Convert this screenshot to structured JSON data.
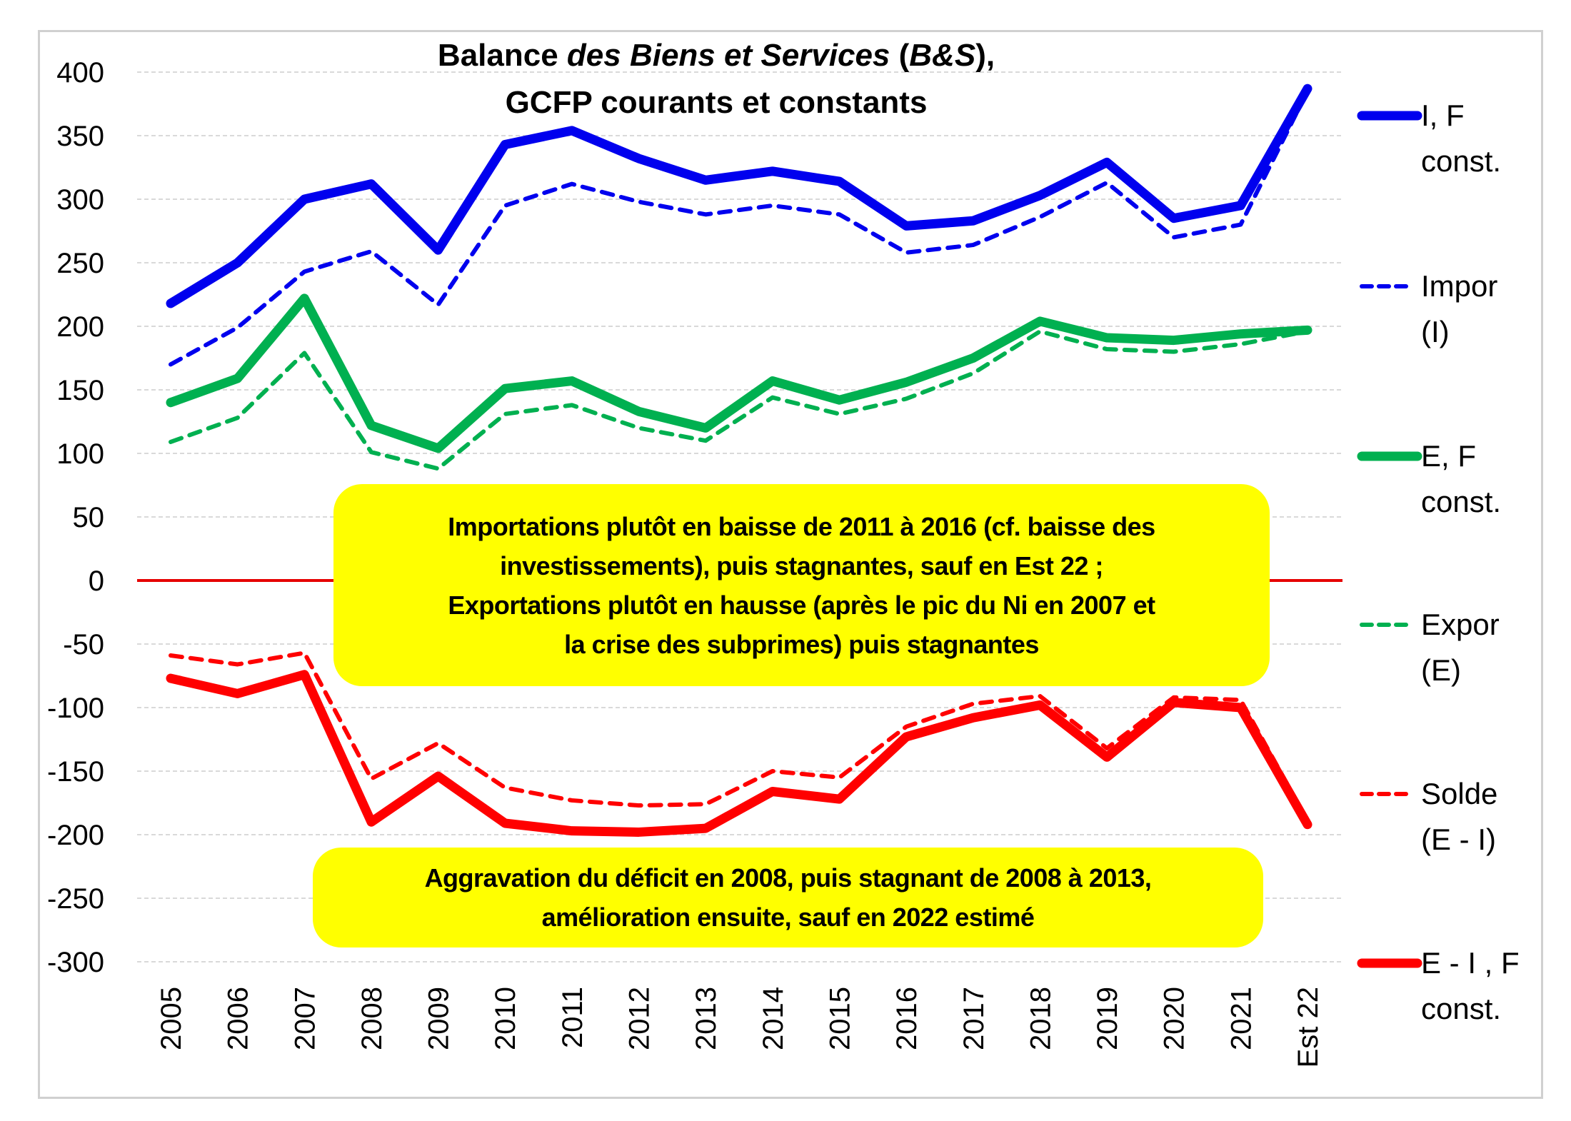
{
  "chart_data": {
    "type": "line",
    "title": [
      "Balance des Biens et Services (B&S),",
      "GCFP courants et constants"
    ],
    "title_parts": {
      "line1": [
        {
          "text": "Balance ",
          "italic": false
        },
        {
          "text": "des Biens et Services",
          "italic": true
        },
        {
          "text": " (",
          "italic": false
        },
        {
          "text": "B&S",
          "italic": true
        },
        {
          "text": "),",
          "italic": false
        }
      ],
      "line2": "GCFP courants et constants"
    },
    "xlabel": "",
    "ylabel": "",
    "categories": [
      "2005",
      "2006",
      "2007",
      "2008",
      "2009",
      "2010",
      "2011",
      "2012",
      "2013",
      "2014",
      "2015",
      "2016",
      "2017",
      "2018",
      "2019",
      "2020",
      "2021",
      "Est 22"
    ],
    "ylim": [
      -300,
      400
    ],
    "yticks": [
      400,
      350,
      300,
      250,
      200,
      150,
      100,
      50,
      0,
      -50,
      -100,
      -150,
      -200,
      -250,
      -300
    ],
    "grid": true,
    "zero_line_color": "#e60000",
    "legend_position": "right",
    "series": [
      {
        "name": "I, F const.",
        "label_lines": [
          "I, F",
          "const."
        ],
        "color": "#0000ee",
        "style": "solid",
        "values": [
          218,
          250,
          300,
          312,
          260,
          343,
          354,
          332,
          315,
          322,
          314,
          279,
          283,
          303,
          329,
          285,
          295,
          387
        ]
      },
      {
        "name": "Impor (I)",
        "label_lines": [
          "Impor",
          "(I)"
        ],
        "color": "#0000ee",
        "style": "dashed",
        "values": [
          170,
          199,
          243,
          259,
          217,
          295,
          312,
          298,
          288,
          295,
          288,
          258,
          264,
          286,
          313,
          270,
          280,
          385
        ]
      },
      {
        "name": "E, F const.",
        "label_lines": [
          "E, F",
          "const."
        ],
        "color": "#00b050",
        "style": "solid",
        "values": [
          140,
          159,
          222,
          122,
          104,
          151,
          157,
          133,
          120,
          157,
          142,
          156,
          175,
          204,
          191,
          189,
          194,
          197
        ]
      },
      {
        "name": "Expor (E)",
        "label_lines": [
          "Expor",
          "(E)"
        ],
        "color": "#00b050",
        "style": "dashed",
        "values": [
          109,
          128,
          179,
          101,
          88,
          131,
          138,
          120,
          110,
          144,
          131,
          143,
          163,
          196,
          182,
          180,
          186,
          196
        ]
      },
      {
        "name": "Solde (E - I)",
        "label_lines": [
          "Solde",
          "(E - I)"
        ],
        "color": "#ff0000",
        "style": "dashed",
        "values": [
          -59,
          -66,
          -57,
          -156,
          -128,
          -163,
          -173,
          -177,
          -176,
          -150,
          -155,
          -115,
          -97,
          -91,
          -132,
          -92,
          -94,
          -189
        ]
      },
      {
        "name": "E - I , F const.",
        "label_lines": [
          "E - I , F",
          "const."
        ],
        "color": "#ff0000",
        "style": "solid",
        "values": [
          -77,
          -89,
          -74,
          -190,
          -154,
          -191,
          -197,
          -198,
          -195,
          -166,
          -172,
          -123,
          -108,
          -98,
          -139,
          -96,
          -100,
          -192
        ]
      }
    ],
    "annotations": [
      {
        "lines": [
          "Importations plutôt  en baisse de  2011 à 2016 (cf. baisse des",
          "investissements), puis  stagnantes, sauf en Est  22 ;",
          "Exportations  plutôt en hausse   (après le pic du Ni en  2007 et",
          "la crise des subprimes) puis stagnantes"
        ],
        "background": "#ffff00"
      },
      {
        "lines": [
          "Aggravation du déficit en 2008, puis   stagnant de 2008 à 2013,",
          "amélioration ensuite, sauf en 2022 estimé"
        ],
        "background": "#ffff00"
      }
    ]
  }
}
